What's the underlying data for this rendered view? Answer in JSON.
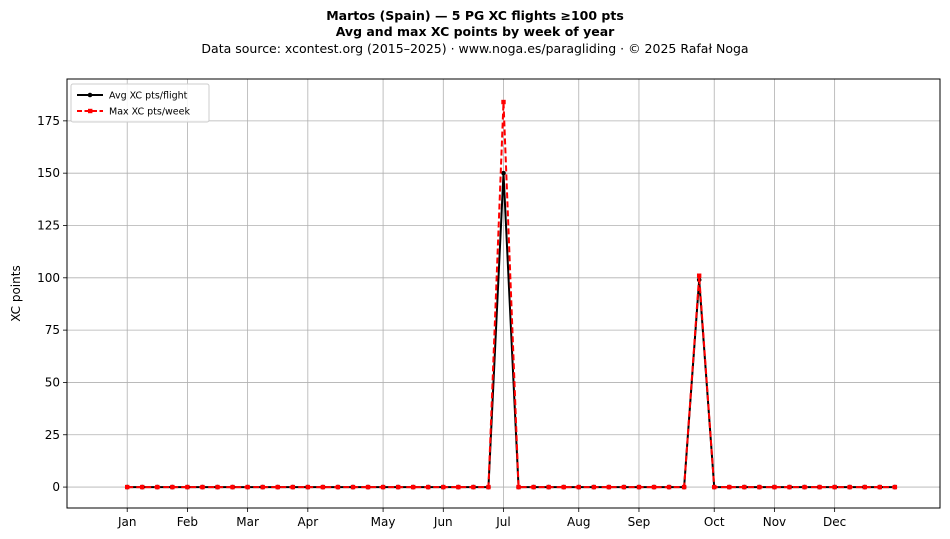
{
  "chart_data": {
    "type": "line",
    "title": "Martos (Spain)  —  5 PG XC flights ≥100 pts",
    "subtitle": "Avg and max XC points by week of year",
    "source_line": "Data source: xcontest.org (2015–2025)  ·  www.noga.es/paragliding  ·  © 2025 Rafał Noga",
    "xlabel": "",
    "ylabel": "XC points",
    "xlim": [
      -3,
      55
    ],
    "ylim": [
      -10,
      195
    ],
    "yticks": [
      0,
      25,
      50,
      75,
      100,
      125,
      150,
      175
    ],
    "month_ticks": [
      {
        "label": "Jan",
        "week": 1
      },
      {
        "label": "Feb",
        "week": 5
      },
      {
        "label": "Mar",
        "week": 9
      },
      {
        "label": "Apr",
        "week": 13
      },
      {
        "label": "May",
        "week": 18
      },
      {
        "label": "Jun",
        "week": 22
      },
      {
        "label": "Jul",
        "week": 26
      },
      {
        "label": "Aug",
        "week": 31
      },
      {
        "label": "Sep",
        "week": 35
      },
      {
        "label": "Oct",
        "week": 40
      },
      {
        "label": "Nov",
        "week": 44
      },
      {
        "label": "Dec",
        "week": 48
      }
    ],
    "x": [
      1,
      2,
      3,
      4,
      5,
      6,
      7,
      8,
      9,
      10,
      11,
      12,
      13,
      14,
      15,
      16,
      17,
      18,
      19,
      20,
      21,
      22,
      23,
      24,
      25,
      26,
      27,
      28,
      29,
      30,
      31,
      32,
      33,
      34,
      35,
      36,
      37,
      38,
      39,
      40,
      41,
      42,
      43,
      44,
      45,
      46,
      47,
      48,
      49,
      50,
      51,
      52
    ],
    "series": [
      {
        "name": "Avg XC pts/flight",
        "color": "#000000",
        "style": "solid",
        "marker": "circle",
        "values": [
          0,
          0,
          0,
          0,
          0,
          0,
          0,
          0,
          0,
          0,
          0,
          0,
          0,
          0,
          0,
          0,
          0,
          0,
          0,
          0,
          0,
          0,
          0,
          0,
          0,
          150,
          0,
          0,
          0,
          0,
          0,
          0,
          0,
          0,
          0,
          0,
          0,
          0,
          99,
          0,
          0,
          0,
          0,
          0,
          0,
          0,
          0,
          0,
          0,
          0,
          0,
          0
        ]
      },
      {
        "name": "Max XC pts/week",
        "color": "#ff0000",
        "style": "dashed",
        "marker": "square",
        "values": [
          0,
          0,
          0,
          0,
          0,
          0,
          0,
          0,
          0,
          0,
          0,
          0,
          0,
          0,
          0,
          0,
          0,
          0,
          0,
          0,
          0,
          0,
          0,
          0,
          0,
          184,
          0,
          0,
          0,
          0,
          0,
          0,
          0,
          0,
          0,
          0,
          0,
          0,
          101,
          0,
          0,
          0,
          0,
          0,
          0,
          0,
          0,
          0,
          0,
          0,
          0,
          0
        ]
      }
    ],
    "grid": true,
    "legend_position": "top-left"
  }
}
